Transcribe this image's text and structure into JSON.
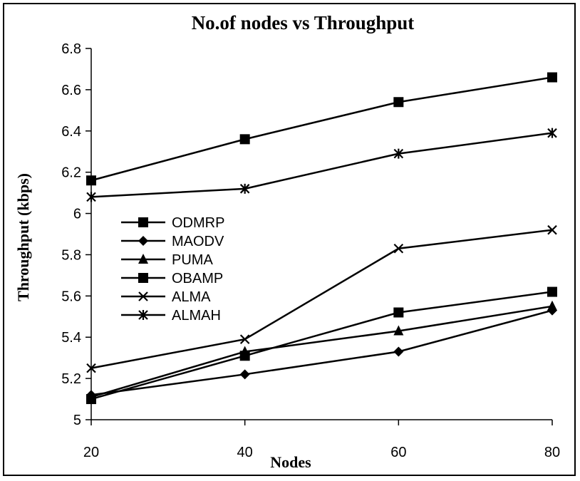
{
  "chart_data": {
    "type": "line",
    "title": "No.of nodes vs Throughput",
    "xlabel": "Nodes",
    "ylabel": "Throughput (kbps)",
    "x": [
      20,
      40,
      60,
      80
    ],
    "xticks": [
      "20",
      "40",
      "60",
      "80"
    ],
    "ylim": [
      5,
      6.8
    ],
    "yticks": [
      "5",
      "5.2",
      "5.4",
      "5.6",
      "5.8",
      "6",
      "6.2",
      "6.4",
      "6.6",
      "6.8"
    ],
    "grid": false,
    "legend_position": "left-middle",
    "series": [
      {
        "name": "ODMRP",
        "marker": "square",
        "values": [
          6.16,
          6.36,
          6.54,
          6.66
        ]
      },
      {
        "name": "MAODV",
        "marker": "diamond",
        "values": [
          5.12,
          5.22,
          5.33,
          5.53
        ]
      },
      {
        "name": "PUMA",
        "marker": "triangle",
        "values": [
          5.11,
          5.33,
          5.43,
          5.55
        ]
      },
      {
        "name": "OBAMP",
        "marker": "square",
        "values": [
          5.1,
          5.31,
          5.52,
          5.62
        ]
      },
      {
        "name": "ALMA",
        "marker": "x",
        "values": [
          5.25,
          5.39,
          5.83,
          5.92
        ]
      },
      {
        "name": "ALMAH",
        "marker": "asterisk",
        "values": [
          6.08,
          6.12,
          6.29,
          6.39
        ]
      }
    ]
  }
}
